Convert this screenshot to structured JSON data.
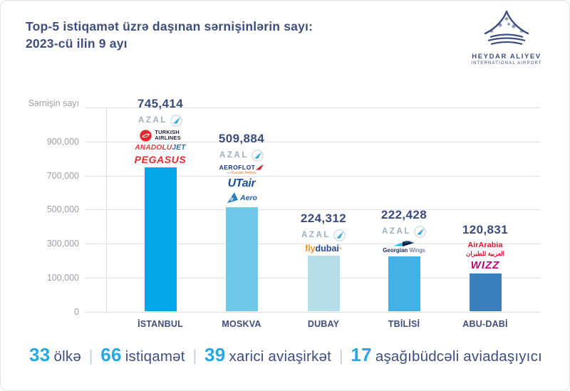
{
  "title": {
    "line1": "Top-5 istiqamət üzrə daşınan sərnişinlərin sayı:",
    "line2": "2023-cü ilin 9 ayı"
  },
  "airport_logo": {
    "name": "HEYDAR ALIYEV",
    "subtitle": "INTERNATIONAL AIRPORT",
    "color": "#3E4E7F"
  },
  "chart_data": {
    "type": "bar",
    "title": "Top-5 istiqamət üzrə daşınan sərnişinlərin sayı: 2023-cü ilin 9 ayı",
    "ylabel": "Sərnişin sayı",
    "xlabel": "",
    "grid": true,
    "categories": [
      "İSTANBUL",
      "MOSKVA",
      "DUBAY",
      "TBİLİSİ",
      "ABU-DABİ"
    ],
    "values": [
      745414,
      509884,
      224312,
      222428,
      120831
    ],
    "value_labels": [
      "745,414",
      "509,884",
      "224,312",
      "222,428",
      "120,831"
    ],
    "bar_colors": [
      "#00A6E8",
      "#6FC7E9",
      "#B5DEE9",
      "#42B2E4",
      "#3A80BC"
    ],
    "ytick_labels": [
      "900,000",
      "700,000",
      "500,000",
      "300,000",
      "100,000",
      "0"
    ],
    "ytick_values": [
      900000,
      700000,
      500000,
      300000,
      100000,
      0
    ],
    "ylim": [
      0,
      1100000
    ],
    "axis_note": "non-linear first segment: 0-100,000 occupies one full grid step",
    "airlines_per_city": [
      [
        "azal",
        "turkish_airlines",
        "anadolujet",
        "pegasus"
      ],
      [
        "azal",
        "aeroflot",
        "utair",
        "iraero"
      ],
      [
        "azal",
        "flydubai"
      ],
      [
        "azal",
        "georgian_wings"
      ],
      [
        "airarabia",
        "wizz"
      ]
    ]
  },
  "airline_logos": {
    "azal": {
      "text": "AZAL"
    },
    "turkish_airlines": {
      "line1": "TURKISH",
      "line2": "AIRLINES"
    },
    "anadolujet": {
      "part1": "ANADOLU",
      "part2": "JET"
    },
    "pegasus": {
      "text": "PEGASUS"
    },
    "aeroflot": {
      "text": "AEROFLOT",
      "subtext": "Russian Airlines"
    },
    "utair": {
      "text": "UTair"
    },
    "iraero": {
      "part1": "Ir",
      "part2": "Aero"
    },
    "flydubai": {
      "part1": "fly",
      "part2": "dubai"
    },
    "georgian_wings": {
      "part1": "Georgian",
      "part2": " Wings"
    },
    "airarabia": {
      "line1": "AirArabia",
      "line2": "العربية للطيران"
    },
    "wizz": {
      "text": "WIZZ"
    }
  },
  "stats": {
    "separator": "|",
    "items": [
      {
        "number": "33",
        "label": "ölkə"
      },
      {
        "number": "66",
        "label": "istiqamət"
      },
      {
        "number": "39",
        "label": "xarici aviaşirkət"
      },
      {
        "number": "17",
        "label": "aşağıbüdcəli aviadaşıyıcı"
      }
    ]
  },
  "colors": {
    "title_navy": "#3E4E7F",
    "stat_number_blue": "#29A7E0",
    "gridline": "#DFDFDF",
    "tick_gray": "#9B9FA4"
  }
}
